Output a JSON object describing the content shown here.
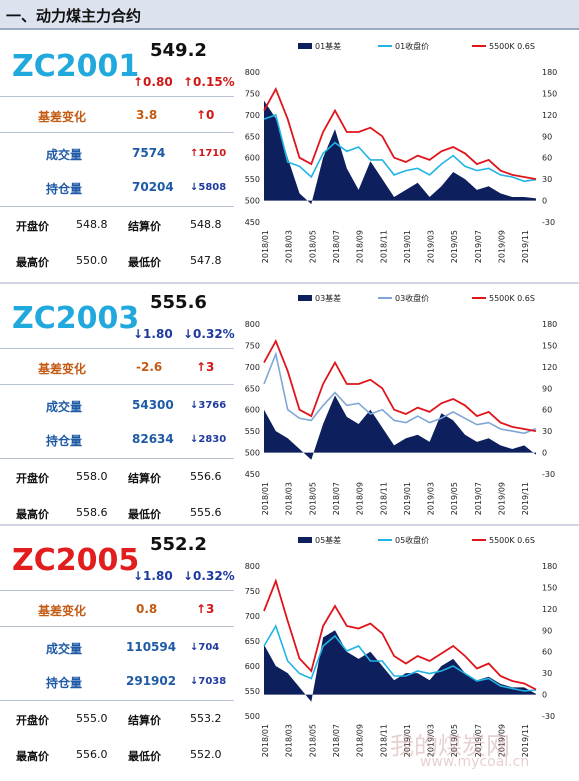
{
  "header": {
    "title": "一、动力煤主力合约"
  },
  "labels": {
    "basis_change": "基差变化",
    "volume": "成交量",
    "oi": "持仓量",
    "open": "开盘价",
    "settle": "结算价",
    "high": "最高价",
    "low": "最低价"
  },
  "colors": {
    "basis_fill": "#0d1f5c",
    "price_line_1": "#1fb4e6",
    "price_line_2": "#7fa6d6",
    "spot_line": "#e0141b"
  },
  "sections": [
    {
      "code": "ZC2001",
      "price": "549.2",
      "change": "↑0.80",
      "change_pct": "↑0.15%",
      "basis_change": "3.8",
      "basis_change_delta": "↑0",
      "volume": "7574",
      "volume_delta": "↑1710",
      "oi": "70204",
      "oi_delta": "↓5808",
      "open": "548.8",
      "settle": "548.8",
      "high": "550.0",
      "low": "547.8"
    },
    {
      "code": "ZC2003",
      "price": "555.6",
      "change": "↓1.80",
      "change_pct": "↓0.32%",
      "basis_change": "-2.6",
      "basis_change_delta": "↑3",
      "volume": "54300",
      "volume_delta": "↓3766",
      "oi": "82634",
      "oi_delta": "↓2830",
      "open": "558.0",
      "settle": "556.6",
      "high": "558.6",
      "low": "555.6"
    },
    {
      "code": "ZC2005",
      "price": "552.2",
      "change": "↓1.80",
      "change_pct": "↓0.32%",
      "basis_change": "0.8",
      "basis_change_delta": "↑3",
      "volume": "110594",
      "volume_delta": "↓704",
      "oi": "291902",
      "oi_delta": "↓7038",
      "open": "555.0",
      "settle": "553.2",
      "high": "556.0",
      "low": "552.0"
    }
  ],
  "chart_data": [
    {
      "type": "area",
      "x": [
        "2018/01",
        "2018/02",
        "2018/03",
        "2018/04",
        "2018/05",
        "2018/06",
        "2018/07",
        "2018/08",
        "2018/09",
        "2018/10",
        "2018/11",
        "2018/12",
        "2019/01",
        "2019/02",
        "2019/03",
        "2019/04",
        "2019/05",
        "2019/06",
        "2019/07",
        "2019/08",
        "2019/09",
        "2019/10",
        "2019/11",
        "2019/12"
      ],
      "x_tick_labels": [
        "2018/01",
        "2018/03",
        "2018/05",
        "2018/07",
        "2018/09",
        "2018/11",
        "2019/01",
        "2019/03",
        "2019/05",
        "2019/07",
        "2019/09",
        "2019/11"
      ],
      "y_left_ticks": [
        "450",
        "500",
        "550",
        "600",
        "650",
        "700",
        "750",
        "800"
      ],
      "y_right_ticks": [
        "-30",
        "0",
        "30",
        "60",
        "90",
        "120",
        "150",
        "180"
      ],
      "ylim_left": [
        450,
        800
      ],
      "ylim_right": [
        -30,
        180
      ],
      "series": [
        {
          "name": "01基差",
          "axis": "right",
          "values": [
            140,
            115,
            60,
            10,
            -5,
            60,
            100,
            45,
            15,
            55,
            30,
            5,
            15,
            25,
            5,
            20,
            40,
            30,
            15,
            20,
            10,
            5,
            5,
            3
          ]
        },
        {
          "name": "01收盘价",
          "axis": "left",
          "values": [
            690,
            700,
            590,
            580,
            555,
            610,
            635,
            615,
            625,
            595,
            595,
            560,
            570,
            575,
            560,
            585,
            605,
            580,
            570,
            575,
            560,
            555,
            545,
            549
          ]
        },
        {
          "name": "5500K 0.6S",
          "axis": "left",
          "values": [
            710,
            760,
            690,
            600,
            585,
            660,
            710,
            660,
            660,
            670,
            650,
            600,
            590,
            605,
            595,
            615,
            625,
            610,
            585,
            595,
            570,
            560,
            555,
            550
          ]
        }
      ]
    },
    {
      "type": "area",
      "x": [
        "2018/01",
        "2018/02",
        "2018/03",
        "2018/04",
        "2018/05",
        "2018/06",
        "2018/07",
        "2018/08",
        "2018/09",
        "2018/10",
        "2018/11",
        "2018/12",
        "2019/01",
        "2019/02",
        "2019/03",
        "2019/04",
        "2019/05",
        "2019/06",
        "2019/07",
        "2019/08",
        "2019/09",
        "2019/10",
        "2019/11",
        "2019/12"
      ],
      "x_tick_labels": [
        "2018/01",
        "2018/03",
        "2018/05",
        "2018/07",
        "2018/09",
        "2018/11",
        "2019/01",
        "2019/03",
        "2019/05",
        "2019/07",
        "2019/09",
        "2019/11"
      ],
      "y_left_ticks": [
        "450",
        "500",
        "550",
        "600",
        "650",
        "700",
        "750",
        "800"
      ],
      "y_right_ticks": [
        "-30",
        "0",
        "30",
        "60",
        "90",
        "120",
        "150",
        "180"
      ],
      "ylim_left": [
        450,
        800
      ],
      "ylim_right": [
        -30,
        180
      ],
      "series": [
        {
          "name": "03基差",
          "axis": "right",
          "values": [
            60,
            30,
            20,
            5,
            -10,
            40,
            80,
            50,
            40,
            60,
            35,
            10,
            20,
            25,
            15,
            55,
            45,
            25,
            15,
            20,
            10,
            5,
            10,
            -3
          ]
        },
        {
          "name": "03收盘价",
          "axis": "left",
          "values": [
            660,
            730,
            600,
            580,
            575,
            610,
            640,
            610,
            615,
            590,
            600,
            575,
            570,
            585,
            570,
            580,
            595,
            580,
            565,
            570,
            555,
            550,
            545,
            556
          ]
        },
        {
          "name": "5500K 0.6S",
          "axis": "left",
          "values": [
            710,
            760,
            690,
            600,
            585,
            660,
            710,
            660,
            660,
            670,
            650,
            600,
            590,
            605,
            595,
            615,
            625,
            610,
            585,
            595,
            570,
            560,
            555,
            550
          ]
        }
      ]
    },
    {
      "type": "area",
      "x": [
        "2018/01",
        "2018/02",
        "2018/03",
        "2018/04",
        "2018/05",
        "2018/06",
        "2018/07",
        "2018/08",
        "2018/09",
        "2018/10",
        "2018/11",
        "2018/12",
        "2019/01",
        "2019/02",
        "2019/03",
        "2019/04",
        "2019/05",
        "2019/06",
        "2019/07",
        "2019/08",
        "2019/09",
        "2019/10",
        "2019/11",
        "2019/12"
      ],
      "x_tick_labels": [
        "2018/01",
        "2018/03",
        "2018/05",
        "2018/07",
        "2018/09",
        "2018/11",
        "2019/01",
        "2019/03",
        "2019/05",
        "2019/07",
        "2019/09",
        "2019/11"
      ],
      "y_left_ticks": [
        "500",
        "550",
        "600",
        "650",
        "700",
        "750",
        "800"
      ],
      "y_right_ticks": [
        "-30",
        "0",
        "30",
        "60",
        "90",
        "120",
        "150",
        "180"
      ],
      "ylim_left": [
        500,
        800
      ],
      "ylim_right": [
        -30,
        180
      ],
      "series": [
        {
          "name": "05基差",
          "axis": "right",
          "values": [
            70,
            40,
            30,
            10,
            -10,
            80,
            90,
            60,
            50,
            60,
            40,
            20,
            30,
            30,
            20,
            40,
            50,
            30,
            20,
            25,
            15,
            10,
            10,
            1
          ]
        },
        {
          "name": "05收盘价",
          "axis": "left",
          "values": [
            640,
            680,
            610,
            585,
            575,
            640,
            660,
            630,
            640,
            610,
            610,
            580,
            580,
            590,
            585,
            590,
            600,
            585,
            570,
            575,
            560,
            555,
            550,
            552
          ]
        },
        {
          "name": "5500K 0.6S",
          "axis": "left",
          "values": [
            710,
            770,
            690,
            615,
            590,
            680,
            720,
            680,
            675,
            685,
            665,
            620,
            605,
            620,
            610,
            625,
            640,
            620,
            595,
            605,
            580,
            570,
            565,
            553
          ]
        }
      ]
    }
  ]
}
